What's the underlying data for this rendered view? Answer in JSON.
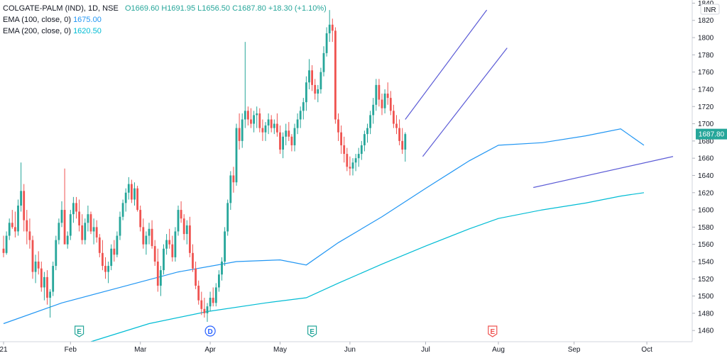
{
  "legend": {
    "symbol": "COLGATE-PALM (IND), 1D, NSE",
    "open": "O1669.60",
    "high": "H1691.95",
    "low": "L1656.50",
    "close": "C1687.80",
    "change": "+18.30 (+1.10%)",
    "ema100_label": "EMA (100, close, 0)",
    "ema100_value": "1675.00",
    "ema200_label": "EMA (200, close, 0)",
    "ema200_value": "1620.50"
  },
  "currency": "INR",
  "last_price_label": "1687.80",
  "colors": {
    "up": "#26a69a",
    "down": "#ef5350",
    "ema100": "#2196f3",
    "ema200": "#00bcd4",
    "trendline": "#5b5bd6",
    "price_tag": "#26a69a",
    "grid": "#f0f3fa"
  },
  "events": [
    {
      "letter": "E",
      "icon": "earnings-icon",
      "color": "#26a69a",
      "date_index": 26
    },
    {
      "letter": "D",
      "icon": "dividend-icon",
      "color": "#2962ff",
      "date_index": 71
    },
    {
      "letter": "E",
      "icon": "earnings-icon",
      "color": "#26a69a",
      "date_index": 106
    },
    {
      "letter": "E",
      "icon": "earnings-icon",
      "color": "#ef5350",
      "date_index": 168
    }
  ],
  "chart_data": {
    "type": "candlestick",
    "title": "COLGATE-PALM (IND), 1D, NSE",
    "x_ticks": [
      "21",
      "Feb",
      "Mar",
      "Apr",
      "May",
      "Jun",
      "Jul",
      "Aug",
      "Sep",
      "Oct"
    ],
    "x_tick_index": [
      0,
      23,
      47,
      71,
      95,
      119,
      145,
      170,
      196,
      221
    ],
    "y_ticks": [
      1460,
      1480,
      1500,
      1520,
      1540,
      1560,
      1580,
      1600,
      1620,
      1640,
      1660,
      1680,
      1700,
      1720,
      1740,
      1760,
      1780,
      1800,
      1820,
      1840
    ],
    "ylim": [
      1447,
      1842
    ],
    "grid": false,
    "series": [
      {
        "name": "EMA (100, close, 0)",
        "type": "line",
        "points": [
          [
            0,
            1468
          ],
          [
            20,
            1492
          ],
          [
            40,
            1510
          ],
          [
            60,
            1528
          ],
          [
            80,
            1540
          ],
          [
            95,
            1542
          ],
          [
            104,
            1536
          ],
          [
            115,
            1562
          ],
          [
            130,
            1592
          ],
          [
            145,
            1625
          ],
          [
            160,
            1657
          ],
          [
            170,
            1675
          ],
          [
            185,
            1678
          ],
          [
            200,
            1686
          ],
          [
            212,
            1694
          ],
          [
            220,
            1675
          ]
        ]
      },
      {
        "name": "EMA (200, close, 0)",
        "type": "line",
        "points": [
          [
            30,
            1447
          ],
          [
            50,
            1468
          ],
          [
            70,
            1482
          ],
          [
            90,
            1492
          ],
          [
            104,
            1498
          ],
          [
            115,
            1515
          ],
          [
            130,
            1537
          ],
          [
            145,
            1558
          ],
          [
            160,
            1578
          ],
          [
            170,
            1590
          ],
          [
            185,
            1600
          ],
          [
            200,
            1608
          ],
          [
            212,
            1616
          ],
          [
            220,
            1620
          ]
        ]
      }
    ],
    "trendlines": [
      {
        "from": [
          138,
          1705
        ],
        "to": [
          166,
          1832
        ]
      },
      {
        "from": [
          144,
          1662
        ],
        "to": [
          173,
          1788
        ]
      },
      {
        "from": [
          182,
          1626
        ],
        "to": [
          230,
          1662
        ]
      }
    ],
    "candles_ohlc": [
      [
        1555,
        1570,
        1545,
        1550
      ],
      [
        1550,
        1575,
        1548,
        1570
      ],
      [
        1570,
        1590,
        1565,
        1585
      ],
      [
        1585,
        1600,
        1578,
        1580
      ],
      [
        1580,
        1598,
        1568,
        1575
      ],
      [
        1575,
        1612,
        1570,
        1605
      ],
      [
        1605,
        1655,
        1598,
        1622
      ],
      [
        1622,
        1630,
        1575,
        1588
      ],
      [
        1588,
        1600,
        1560,
        1575
      ],
      [
        1575,
        1590,
        1555,
        1565
      ],
      [
        1565,
        1570,
        1520,
        1528
      ],
      [
        1528,
        1548,
        1515,
        1540
      ],
      [
        1540,
        1552,
        1525,
        1532
      ],
      [
        1532,
        1540,
        1505,
        1510
      ],
      [
        1510,
        1528,
        1495,
        1522
      ],
      [
        1522,
        1530,
        1490,
        1498
      ],
      [
        1498,
        1508,
        1475,
        1505
      ],
      [
        1505,
        1540,
        1500,
        1535
      ],
      [
        1535,
        1570,
        1530,
        1565
      ],
      [
        1565,
        1590,
        1560,
        1585
      ],
      [
        1585,
        1610,
        1580,
        1600
      ],
      [
        1600,
        1648,
        1595,
        1560
      ],
      [
        1560,
        1575,
        1555,
        1570
      ],
      [
        1570,
        1600,
        1565,
        1595
      ],
      [
        1595,
        1615,
        1585,
        1608
      ],
      [
        1608,
        1615,
        1590,
        1598
      ],
      [
        1598,
        1612,
        1575,
        1582
      ],
      [
        1582,
        1595,
        1560,
        1565
      ],
      [
        1565,
        1590,
        1560,
        1585
      ],
      [
        1585,
        1605,
        1575,
        1595
      ],
      [
        1595,
        1598,
        1572,
        1575
      ],
      [
        1575,
        1590,
        1560,
        1580
      ],
      [
        1580,
        1588,
        1562,
        1568
      ],
      [
        1568,
        1572,
        1545,
        1550
      ],
      [
        1550,
        1565,
        1530,
        1535
      ],
      [
        1535,
        1545,
        1520,
        1528
      ],
      [
        1528,
        1540,
        1515,
        1535
      ],
      [
        1535,
        1560,
        1530,
        1555
      ],
      [
        1555,
        1565,
        1540,
        1548
      ],
      [
        1548,
        1575,
        1545,
        1570
      ],
      [
        1570,
        1598,
        1565,
        1592
      ],
      [
        1592,
        1612,
        1588,
        1608
      ],
      [
        1608,
        1625,
        1598,
        1620
      ],
      [
        1620,
        1638,
        1612,
        1630
      ],
      [
        1630,
        1635,
        1608,
        1612
      ],
      [
        1612,
        1632,
        1605,
        1625
      ],
      [
        1625,
        1628,
        1598,
        1600
      ],
      [
        1600,
        1605,
        1575,
        1580
      ],
      [
        1580,
        1590,
        1555,
        1560
      ],
      [
        1560,
        1575,
        1548,
        1570
      ],
      [
        1570,
        1585,
        1560,
        1578
      ],
      [
        1578,
        1588,
        1555,
        1558
      ],
      [
        1558,
        1565,
        1535,
        1540
      ],
      [
        1540,
        1555,
        1505,
        1512
      ],
      [
        1512,
        1535,
        1500,
        1530
      ],
      [
        1530,
        1560,
        1525,
        1555
      ],
      [
        1555,
        1572,
        1548,
        1565
      ],
      [
        1565,
        1578,
        1555,
        1560
      ],
      [
        1560,
        1570,
        1540,
        1545
      ],
      [
        1545,
        1580,
        1540,
        1575
      ],
      [
        1575,
        1605,
        1570,
        1600
      ],
      [
        1600,
        1610,
        1585,
        1590
      ],
      [
        1590,
        1595,
        1565,
        1572
      ],
      [
        1572,
        1588,
        1560,
        1582
      ],
      [
        1582,
        1592,
        1545,
        1550
      ],
      [
        1550,
        1560,
        1528,
        1532
      ],
      [
        1532,
        1540,
        1508,
        1512
      ],
      [
        1512,
        1518,
        1490,
        1495
      ],
      [
        1495,
        1505,
        1478,
        1485
      ],
      [
        1485,
        1498,
        1475,
        1480
      ],
      [
        1480,
        1492,
        1470,
        1488
      ],
      [
        1488,
        1505,
        1482,
        1498
      ],
      [
        1498,
        1510,
        1488,
        1492
      ],
      [
        1492,
        1515,
        1488,
        1510
      ],
      [
        1510,
        1530,
        1505,
        1525
      ],
      [
        1525,
        1545,
        1518,
        1540
      ],
      [
        1540,
        1580,
        1535,
        1575
      ],
      [
        1575,
        1612,
        1570,
        1608
      ],
      [
        1608,
        1645,
        1600,
        1640
      ],
      [
        1640,
        1650,
        1620,
        1632
      ],
      [
        1632,
        1700,
        1628,
        1695
      ],
      [
        1695,
        1712,
        1670,
        1680
      ],
      [
        1680,
        1712,
        1672,
        1705
      ],
      [
        1705,
        1795,
        1695,
        1715
      ],
      [
        1715,
        1720,
        1698,
        1705
      ],
      [
        1705,
        1718,
        1695,
        1700
      ],
      [
        1700,
        1715,
        1690,
        1710
      ],
      [
        1710,
        1720,
        1695,
        1712
      ],
      [
        1712,
        1718,
        1690,
        1695
      ],
      [
        1695,
        1705,
        1680,
        1690
      ],
      [
        1690,
        1702,
        1680,
        1698
      ],
      [
        1698,
        1712,
        1688,
        1705
      ],
      [
        1705,
        1710,
        1690,
        1695
      ],
      [
        1695,
        1705,
        1688,
        1700
      ],
      [
        1700,
        1712,
        1685,
        1690
      ],
      [
        1690,
        1698,
        1665,
        1670
      ],
      [
        1670,
        1690,
        1660,
        1685
      ],
      [
        1685,
        1700,
        1675,
        1692
      ],
      [
        1692,
        1702,
        1680,
        1685
      ],
      [
        1685,
        1688,
        1668,
        1675
      ],
      [
        1675,
        1700,
        1668,
        1695
      ],
      [
        1695,
        1712,
        1688,
        1705
      ],
      [
        1705,
        1720,
        1695,
        1715
      ],
      [
        1715,
        1730,
        1705,
        1725
      ],
      [
        1725,
        1755,
        1715,
        1748
      ],
      [
        1748,
        1775,
        1740,
        1762
      ],
      [
        1762,
        1768,
        1738,
        1745
      ],
      [
        1745,
        1752,
        1728,
        1735
      ],
      [
        1735,
        1745,
        1725,
        1740
      ],
      [
        1740,
        1765,
        1735,
        1760
      ],
      [
        1760,
        1790,
        1755,
        1782
      ],
      [
        1782,
        1812,
        1778,
        1805
      ],
      [
        1805,
        1832,
        1795,
        1815
      ],
      [
        1815,
        1822,
        1795,
        1808
      ],
      [
        1808,
        1812,
        1700,
        1705
      ],
      [
        1705,
        1712,
        1680,
        1690
      ],
      [
        1690,
        1698,
        1665,
        1675
      ],
      [
        1675,
        1685,
        1655,
        1665
      ],
      [
        1665,
        1672,
        1645,
        1650
      ],
      [
        1650,
        1662,
        1640,
        1648
      ],
      [
        1648,
        1660,
        1640,
        1655
      ],
      [
        1655,
        1665,
        1645,
        1660
      ],
      [
        1660,
        1672,
        1650,
        1665
      ],
      [
        1665,
        1680,
        1658,
        1675
      ],
      [
        1675,
        1692,
        1668,
        1688
      ],
      [
        1688,
        1700,
        1678,
        1695
      ],
      [
        1695,
        1715,
        1688,
        1710
      ],
      [
        1710,
        1730,
        1700,
        1722
      ],
      [
        1722,
        1752,
        1715,
        1745
      ],
      [
        1745,
        1752,
        1720,
        1728
      ],
      [
        1728,
        1735,
        1710,
        1718
      ],
      [
        1718,
        1740,
        1712,
        1735
      ],
      [
        1735,
        1748,
        1722,
        1730
      ],
      [
        1730,
        1738,
        1710,
        1715
      ],
      [
        1715,
        1722,
        1695,
        1700
      ],
      [
        1700,
        1710,
        1688,
        1695
      ],
      [
        1695,
        1705,
        1675,
        1680
      ],
      [
        1680,
        1695,
        1665,
        1670
      ],
      [
        1670,
        1690,
        1656,
        1688
      ]
    ]
  }
}
